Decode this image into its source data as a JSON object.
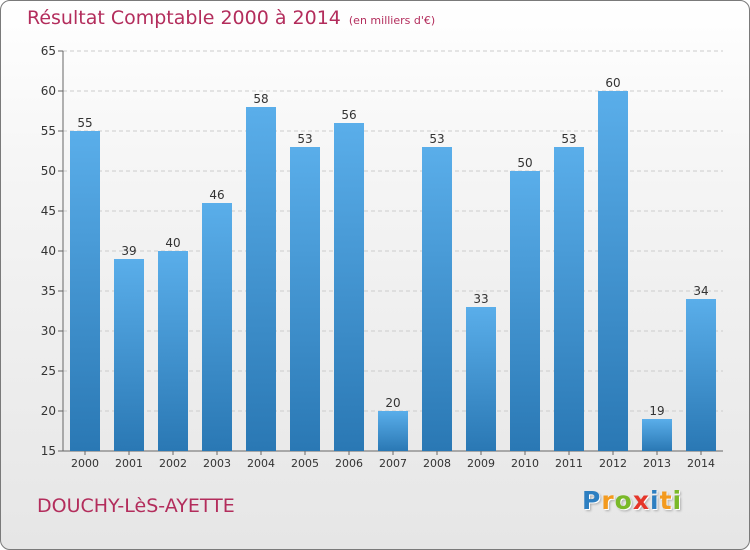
{
  "chart_data": {
    "type": "bar",
    "title": "Résultat Comptable 2000 à 2014",
    "subtitle": "(en milliers d'€)",
    "categories": [
      "2000",
      "2001",
      "2002",
      "2003",
      "2004",
      "2005",
      "2006",
      "2007",
      "2008",
      "2009",
      "2010",
      "2011",
      "2012",
      "2013",
      "2014"
    ],
    "values": [
      55,
      39,
      40,
      46,
      58,
      53,
      56,
      20,
      53,
      33,
      50,
      53,
      60,
      19,
      34
    ],
    "ylim": [
      15,
      65
    ],
    "yticks": [
      15,
      20,
      25,
      30,
      35,
      40,
      45,
      50,
      55,
      60,
      65
    ],
    "grid": "horizontal",
    "bar_color_top": "#5aaeea",
    "bar_color_bottom": "#2a78b4"
  },
  "footer": {
    "commune": "DOUCHY-LèS-AYETTE",
    "logo_letters": [
      "P",
      "r",
      "o",
      "x",
      "i",
      "t",
      "i"
    ],
    "logo_colors": [
      "#2d7fc1",
      "#f39a1e",
      "#7ab929",
      "#e5362a",
      "#2d7fc1",
      "#f39a1e",
      "#7ab929"
    ]
  }
}
